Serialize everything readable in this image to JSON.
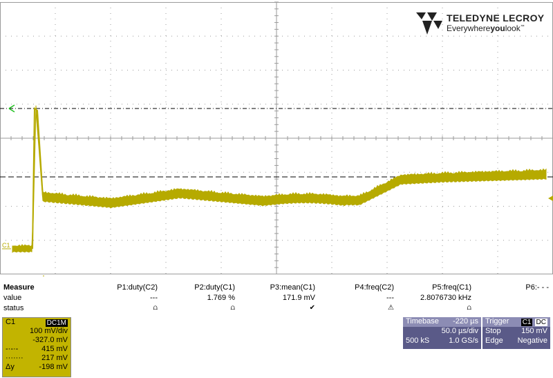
{
  "brand": {
    "name": "TELEDYNE LECROY",
    "tagline_prefix": "Everywhere",
    "tagline_bold": "you",
    "tagline_suffix": "look",
    "tm": "™"
  },
  "colors": {
    "trace": "#b6aa00",
    "panel": "#c2b400",
    "timebase_panel": "#5a5a88",
    "grid": "#9a9a9a"
  },
  "scope": {
    "channel_marker": "C1",
    "cursor_marker_icon": "x-cursor-icon",
    "trigger_marker_icon": "trigger-arrow-icon"
  },
  "measure": {
    "header": "Measure",
    "row_value_label": "value",
    "row_status_label": "status",
    "params": [
      {
        "name": "P1:duty(C2)",
        "value": "---",
        "status": "⩍"
      },
      {
        "name": "P2:duty(C1)",
        "value": "1.769 %",
        "status": "⩍"
      },
      {
        "name": "P3:mean(C1)",
        "value": "171.9 mV",
        "status": "✔"
      },
      {
        "name": "P4:freq(C2)",
        "value": "---",
        "status": "⚠"
      },
      {
        "name": "P5:freq(C1)",
        "value": "2.8076730 kHz",
        "status": "⩍"
      },
      {
        "name": "P6:- - -",
        "value": "",
        "status": ""
      }
    ]
  },
  "channel": {
    "name": "C1",
    "coupling": "DC1M",
    "vdiv": "100 mV/div",
    "offset": "-327.0 mV",
    "cursor1_sym": "-·-·-",
    "cursor1": "415 mV",
    "cursor2_sym": "·······",
    "cursor2": "217 mV",
    "delta_label": "Δy",
    "delta": "-198 mV"
  },
  "timebase": {
    "label": "Timebase",
    "delay": "-220 µs",
    "tdiv": "50.0 µs/div",
    "samples": "500 kS",
    "rate": "1.0 GS/s"
  },
  "trigger": {
    "label": "Trigger",
    "source": "C1",
    "coupling": "DC",
    "mode": "Stop",
    "level": "150 mV",
    "type": "Edge",
    "slope": "Negative"
  }
}
